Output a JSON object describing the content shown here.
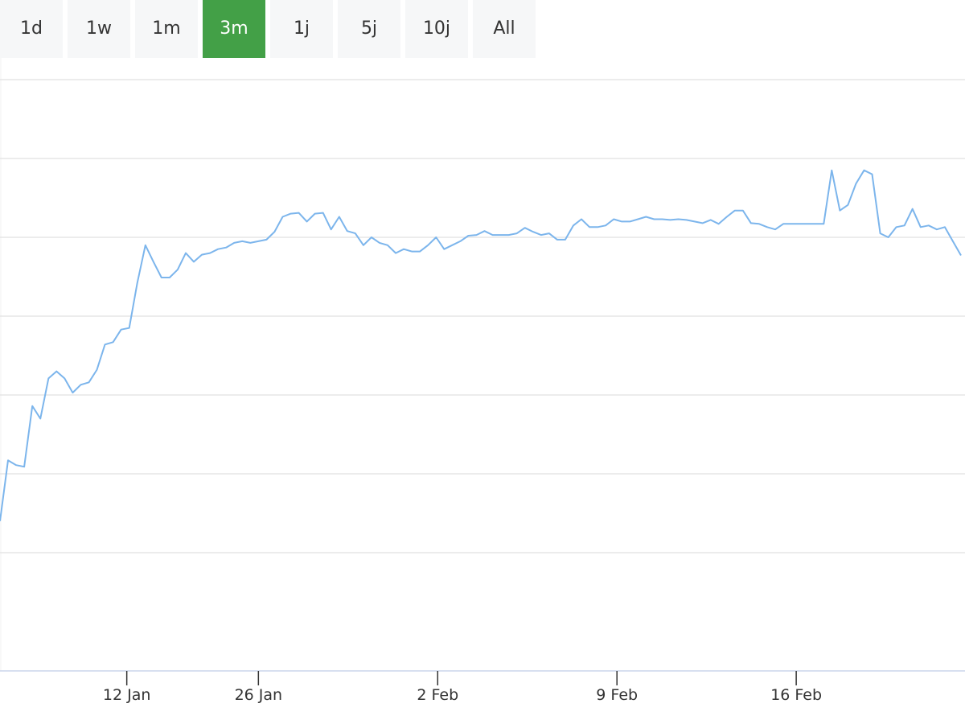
{
  "range_buttons": {
    "labels": [
      "1d",
      "1w",
      "1m",
      "3m",
      "1j",
      "5j",
      "10j",
      "All"
    ],
    "selected_index": 3
  },
  "chart_data": {
    "type": "line",
    "color": "#7cb5ec",
    "grid": true,
    "values": [
      1.9,
      2.67,
      2.61,
      2.59,
      3.36,
      3.2,
      3.71,
      3.8,
      3.71,
      3.53,
      3.63,
      3.66,
      3.82,
      4.14,
      4.17,
      4.33,
      4.35,
      4.92,
      5.4,
      5.19,
      4.99,
      4.99,
      5.09,
      5.3,
      5.19,
      5.28,
      5.3,
      5.35,
      5.37,
      5.43,
      5.45,
      5.43,
      5.45,
      5.47,
      5.57,
      5.76,
      5.8,
      5.81,
      5.7,
      5.8,
      5.81,
      5.6,
      5.76,
      5.58,
      5.55,
      5.4,
      5.5,
      5.43,
      5.4,
      5.3,
      5.35,
      5.32,
      5.32,
      5.4,
      5.5,
      5.35,
      5.4,
      5.45,
      5.52,
      5.53,
      5.58,
      5.53,
      5.53,
      5.53,
      5.55,
      5.62,
      5.57,
      5.53,
      5.55,
      5.47,
      5.47,
      5.65,
      5.73,
      5.63,
      5.63,
      5.65,
      5.73,
      5.7,
      5.7,
      5.73,
      5.76,
      5.73,
      5.73,
      5.72,
      5.73,
      5.72,
      5.7,
      5.68,
      5.72,
      5.67,
      5.76,
      5.84,
      5.84,
      5.68,
      5.67,
      5.63,
      5.6,
      5.67,
      5.67,
      5.67,
      5.67,
      5.67,
      5.67,
      6.35,
      5.84,
      5.91,
      6.18,
      6.35,
      6.3,
      5.55,
      5.5,
      5.63,
      5.65,
      5.86,
      5.63,
      5.65,
      5.6,
      5.63,
      5.45,
      5.27
    ],
    "xlim": [
      0,
      119.5
    ],
    "xticks": [
      {
        "value": 15.7,
        "label": "12 Jan"
      },
      {
        "value": 32,
        "label": "26 Jan"
      },
      {
        "value": 54.2,
        "label": "2 Feb"
      },
      {
        "value": 76.4,
        "label": "9 Feb"
      },
      {
        "value": 98.6,
        "label": "16 Feb"
      }
    ],
    "ylim": [
      0,
      7.5
    ],
    "yticks": [
      1.5,
      2.5,
      3.5,
      4.5,
      5.5,
      6.5,
      7.5
    ]
  }
}
